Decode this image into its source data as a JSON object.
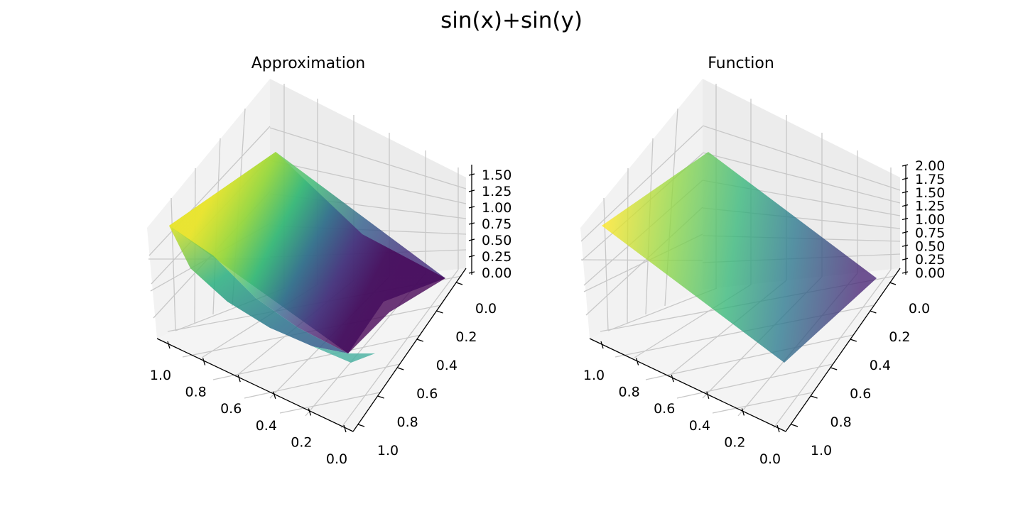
{
  "figure": {
    "suptitle": "sin(x)+sin(y)"
  },
  "chart_data": [
    {
      "type": "surface3d",
      "title": "Approximation",
      "colormap": "viridis",
      "x_ticks": [
        "0.0",
        "0.2",
        "0.4",
        "0.6",
        "0.8",
        "1.0"
      ],
      "y_ticks": [
        "0.0",
        "0.2",
        "0.4",
        "0.6",
        "0.8",
        "1.0"
      ],
      "z_ticks": [
        "0.00",
        "0.25",
        "0.50",
        "0.75",
        "1.00",
        "1.25",
        "1.50"
      ],
      "xlim": [
        0,
        1
      ],
      "ylim": [
        0,
        1
      ],
      "zlim": [
        0,
        1.6
      ],
      "grid": true
    },
    {
      "type": "surface3d",
      "title": "Function",
      "colormap": "viridis",
      "x_ticks": [
        "0.0",
        "0.2",
        "0.4",
        "0.6",
        "0.8",
        "1.0"
      ],
      "y_ticks": [
        "0.0",
        "0.2",
        "0.4",
        "0.6",
        "0.8",
        "1.0"
      ],
      "z_ticks": [
        "0.00",
        "0.25",
        "0.50",
        "0.75",
        "1.00",
        "1.25",
        "1.50",
        "1.75",
        "2.00"
      ],
      "xlim": [
        0,
        1
      ],
      "ylim": [
        0,
        1
      ],
      "zlim": [
        0,
        2
      ],
      "grid": true
    }
  ]
}
